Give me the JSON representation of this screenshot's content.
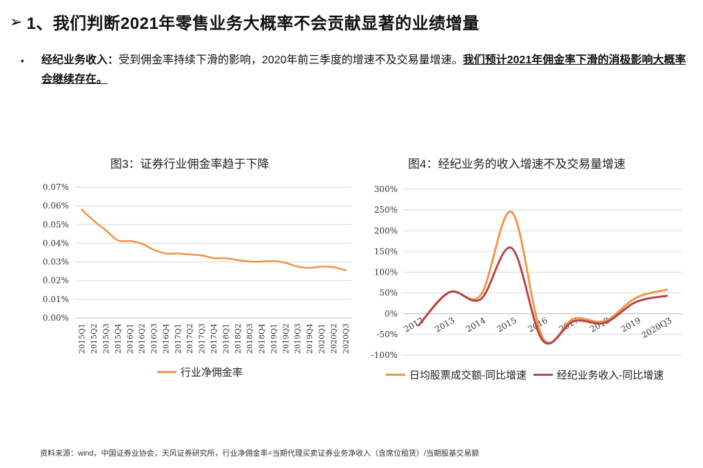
{
  "header": {
    "arrow": "➢",
    "title": "1、我们判断2021年零售业务大概率不会贡献显著的业绩增量"
  },
  "bullet": {
    "dot": "•",
    "label": "经纪业务收入：",
    "text": "受到佣金率持续下滑的影响，2020年前三季度的增速不及交易量增速。",
    "emphasis": "我们预计2021年佣金率下滑的消极影响大概率会继续存在。"
  },
  "source": "资料来源：wind，中国证券业协会，天风证券研究所，行业净佣金率=当期代理买卖证券业务净收入（含席位租赁）/当期股基交易额",
  "colors": {
    "orange": "#F0964A",
    "red": "#B8434A",
    "grid": "#d9d9d9",
    "axis": "#555555"
  },
  "chart_data": [
    {
      "type": "line",
      "title": "图3：证券行业佣金率趋于下降",
      "categories": [
        "2015Q1",
        "2015Q2",
        "2015Q3",
        "2015Q4",
        "2016Q1",
        "2016Q2",
        "2016Q3",
        "2016Q4",
        "2017Q1",
        "2017Q2",
        "2017Q3",
        "2017Q4",
        "2018Q1",
        "2018Q2",
        "2018Q3",
        "2018Q4",
        "2019Q1",
        "2019Q2",
        "2019Q3",
        "2019Q4",
        "2020Q1",
        "2020Q2",
        "2020Q3"
      ],
      "series": [
        {
          "name": "行业净佣金率",
          "color": "#F0964A",
          "values": [
            0.058,
            0.052,
            0.047,
            0.0415,
            0.0412,
            0.0398,
            0.0365,
            0.0345,
            0.0345,
            0.034,
            0.0335,
            0.032,
            0.032,
            0.031,
            0.0302,
            0.0302,
            0.0305,
            0.0295,
            0.0275,
            0.0268,
            0.0275,
            0.0272,
            0.0255
          ]
        }
      ],
      "yticks": [
        "0.07%",
        "0.06%",
        "0.05%",
        "0.04%",
        "0.03%",
        "0.02%",
        "0.01%",
        "0.00%"
      ],
      "ylim": [
        0,
        0.07
      ],
      "grid": true,
      "legend": "bottom"
    },
    {
      "type": "line",
      "title": "图4：经纪业务的收入增速不及交易量增速",
      "categories": [
        "2012",
        "2013",
        "2014",
        "2015",
        "2016",
        "2017",
        "2018",
        "2019",
        "2020Q3"
      ],
      "series": [
        {
          "name": "日均股票成交额-同比增速",
          "color": "#F0964A",
          "values": [
            -28,
            52,
            45,
            245,
            -58,
            -12,
            -18,
            38,
            58
          ]
        },
        {
          "name": "经纪业务收入-同比增速",
          "color": "#B8434A",
          "values": [
            -28,
            52,
            35,
            158,
            -65,
            -18,
            -22,
            28,
            43
          ]
        }
      ],
      "yticks": [
        "300%",
        "250%",
        "200%",
        "150%",
        "100%",
        "50%",
        "0%",
        "-50%",
        "-100%"
      ],
      "ylim": [
        -100,
        300
      ],
      "grid": true,
      "legend": "bottom"
    }
  ]
}
